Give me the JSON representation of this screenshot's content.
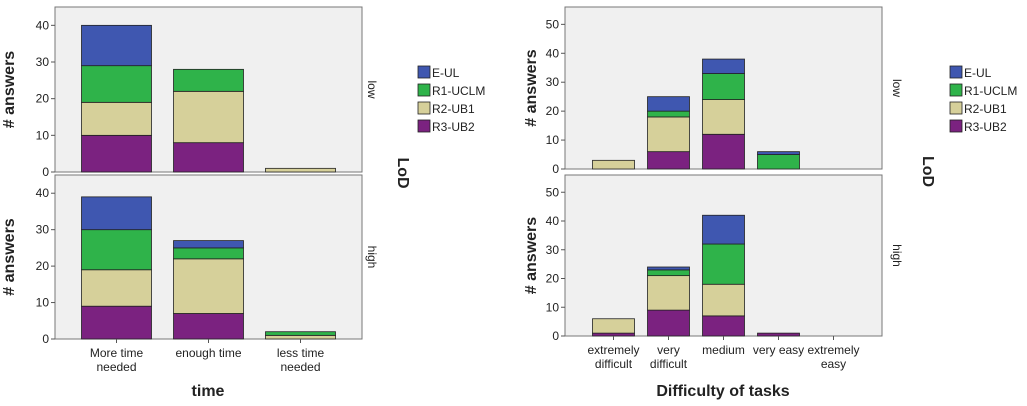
{
  "chart_data": [
    {
      "type": "bar",
      "stacked": true,
      "xlabel": "time",
      "facet_label": "LoD",
      "categories": [
        "More time needed",
        "enough time",
        "less time needed"
      ],
      "series": [
        {
          "name": "E-UL",
          "color": "#3f57b0"
        },
        {
          "name": "R1-UCLM",
          "color": "#2fb34a"
        },
        {
          "name": "R2-UB1",
          "color": "#d6d09a"
        },
        {
          "name": "R3-UB2",
          "color": "#7b2280"
        }
      ],
      "panels": [
        {
          "label": "low",
          "ylabel": "# answers",
          "ylim": [
            0,
            45
          ],
          "yticks": [
            0,
            10,
            20,
            30,
            40
          ],
          "series": [
            {
              "values": [
                11,
                0,
                0
              ]
            },
            {
              "values": [
                10,
                6,
                0
              ]
            },
            {
              "values": [
                9,
                14,
                1
              ]
            },
            {
              "values": [
                10,
                8,
                0
              ]
            }
          ]
        },
        {
          "label": "high",
          "ylabel": "# answers",
          "ylim": [
            0,
            45
          ],
          "yticks": [
            0,
            10,
            20,
            30,
            40
          ],
          "series": [
            {
              "values": [
                9,
                2,
                0
              ]
            },
            {
              "values": [
                11,
                3,
                1
              ]
            },
            {
              "values": [
                10,
                15,
                1
              ]
            },
            {
              "values": [
                9,
                7,
                0
              ]
            }
          ]
        }
      ]
    },
    {
      "type": "bar",
      "stacked": true,
      "xlabel": "Difficulty of tasks",
      "facet_label": "LoD",
      "categories": [
        "extremely difficult",
        "very difficult",
        "medium",
        "very easy",
        "extremely easy"
      ],
      "series": [
        {
          "name": "E-UL",
          "color": "#3f57b0"
        },
        {
          "name": "R1-UCLM",
          "color": "#2fb34a"
        },
        {
          "name": "R2-UB1",
          "color": "#d6d09a"
        },
        {
          "name": "R3-UB2",
          "color": "#7b2280"
        }
      ],
      "panels": [
        {
          "label": "low",
          "ylabel": "# answers",
          "ylim": [
            0,
            56
          ],
          "yticks": [
            0,
            10,
            20,
            30,
            40,
            50
          ],
          "series": [
            {
              "values": [
                0,
                5,
                5,
                1,
                0
              ]
            },
            {
              "values": [
                0,
                2,
                9,
                5,
                0
              ]
            },
            {
              "values": [
                3,
                12,
                12,
                0,
                0
              ]
            },
            {
              "values": [
                0,
                6,
                12,
                0,
                0
              ]
            }
          ]
        },
        {
          "label": "high",
          "ylabel": "# answers",
          "ylim": [
            0,
            56
          ],
          "yticks": [
            0,
            10,
            20,
            30,
            40,
            50
          ],
          "series": [
            {
              "values": [
                0,
                1,
                10,
                0,
                0
              ]
            },
            {
              "values": [
                0,
                2,
                14,
                0,
                0
              ]
            },
            {
              "values": [
                5,
                12,
                11,
                0,
                0
              ]
            },
            {
              "values": [
                1,
                9,
                7,
                1,
                0
              ]
            }
          ]
        }
      ]
    }
  ]
}
